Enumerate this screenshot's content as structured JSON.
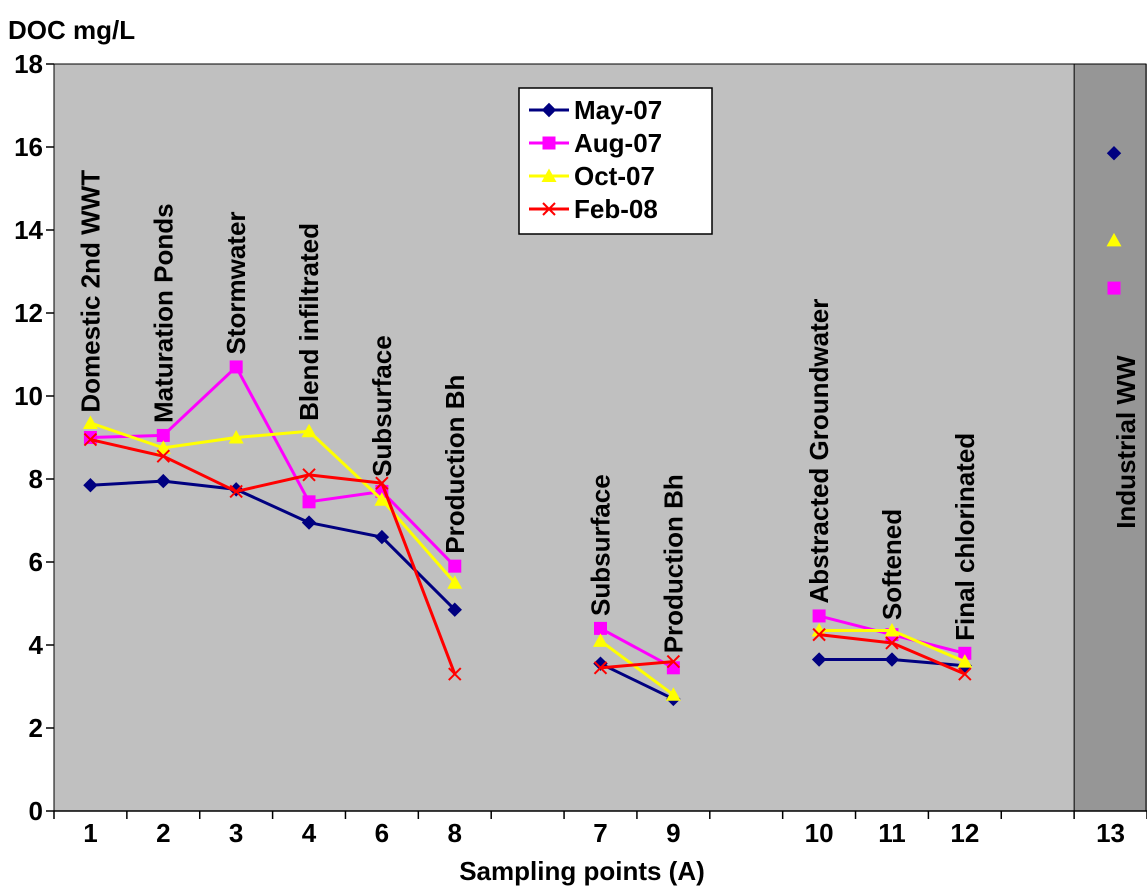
{
  "chart_data": {
    "type": "line",
    "ylabel": "DOC mg/L",
    "xlabel": "Sampling points (A)",
    "ylim": [
      0,
      18
    ],
    "yticks": [
      0,
      2,
      4,
      6,
      8,
      10,
      12,
      14,
      16,
      18
    ],
    "categories": [
      "1",
      "2",
      "3",
      "4",
      "6",
      "8",
      "",
      "7",
      "9",
      "",
      "10",
      "11",
      "12",
      "",
      "13"
    ],
    "colors": {
      "plot_background": "#c0c0c0",
      "industrial_background": "#969696",
      "May-07": "#000080",
      "Aug-07": "#ff00ff",
      "Oct-07": "#ffff00",
      "Feb-08": "#ff0000"
    },
    "series": [
      {
        "name": "May-07",
        "marker": "diamond",
        "color": "#000080",
        "values": [
          7.85,
          7.95,
          7.75,
          6.95,
          6.6,
          4.85,
          null,
          3.55,
          2.7,
          null,
          3.65,
          3.65,
          3.5,
          null,
          15.85
        ]
      },
      {
        "name": "Aug-07",
        "marker": "square",
        "color": "#ff00ff",
        "values": [
          9.0,
          9.05,
          10.7,
          7.45,
          7.7,
          5.9,
          null,
          4.4,
          3.45,
          null,
          4.7,
          4.25,
          3.8,
          null,
          12.6
        ]
      },
      {
        "name": "Oct-07",
        "marker": "triangle",
        "color": "#ffff00",
        "values": [
          9.35,
          8.75,
          9.0,
          9.15,
          7.5,
          5.5,
          null,
          4.1,
          2.8,
          null,
          4.35,
          4.35,
          3.6,
          null,
          13.75
        ]
      },
      {
        "name": "Feb-08",
        "marker": "x",
        "color": "#ff0000",
        "values": [
          8.95,
          8.55,
          7.7,
          8.1,
          7.9,
          3.3,
          null,
          3.45,
          3.6,
          null,
          4.25,
          4.05,
          3.3,
          null,
          null
        ]
      }
    ],
    "line_groups": [
      [
        0,
        5
      ],
      [
        7,
        8
      ],
      [
        10,
        12
      ]
    ],
    "marker_only_index": 14,
    "annotations": [
      {
        "text": "Domestic 2nd WWT",
        "index": 0,
        "value": 9.6
      },
      {
        "text": "Maturation Ponds",
        "index": 1,
        "value": 9.35
      },
      {
        "text": "Stormwater",
        "index": 2,
        "value": 11.0
      },
      {
        "text": "Blend infiltrated",
        "index": 3,
        "value": 9.4
      },
      {
        "text": "Subsurface",
        "index": 4,
        "value": 8.05
      },
      {
        "text": "Production Bh",
        "index": 5,
        "value": 6.2
      },
      {
        "text": "Subsurface",
        "index": 7,
        "value": 4.7
      },
      {
        "text": "Production Bh",
        "index": 8,
        "value": 3.8
      },
      {
        "text": "Abstracted Groundwater",
        "index": 10,
        "value": 5.0
      },
      {
        "text": "Softened",
        "index": 11,
        "value": 4.6
      },
      {
        "text": "Final chlorinated",
        "index": 12,
        "value": 4.1
      },
      {
        "text": "Industrial WW",
        "index": 14,
        "value": 6.8
      }
    ],
    "legend_position": "top-center",
    "grid": false
  }
}
